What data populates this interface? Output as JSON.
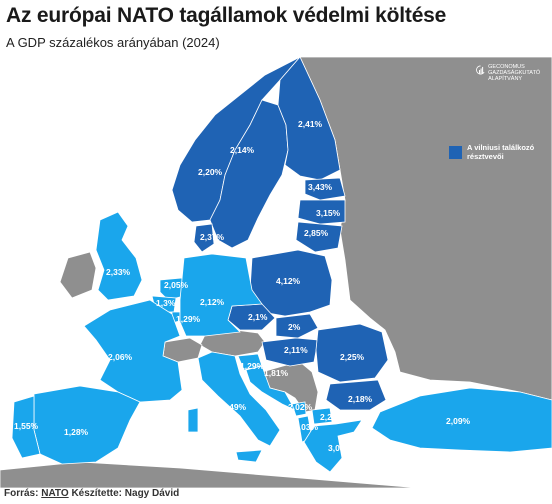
{
  "title": "Az európai NATO tagállamok védelmi költése",
  "subtitle": "A GDP százalékos arányában (2024)",
  "footer": {
    "source_prefix": "Forrás:",
    "source": "NATO",
    "author": "Készítette: Nagy Dávid"
  },
  "legend": {
    "label": "A vilniusi találkozó résztvevői"
  },
  "logo": {
    "text": "GECONOMUS GAZDASÁGKUTATÓ ALAPÍTVÁNY"
  },
  "colors": {
    "vilnius": "#1f63b4",
    "nato": "#1aa6ec",
    "non_nato": "#8f8f8f",
    "sea": "#ffffff",
    "border": "#ffffff",
    "label": "#ffffff"
  },
  "countries": [
    {
      "name": "Finland",
      "value": "2,41%",
      "group": "vilnius"
    },
    {
      "name": "Sweden",
      "value": "2,14%",
      "group": "vilnius"
    },
    {
      "name": "Norway",
      "value": "2,20%",
      "group": "vilnius"
    },
    {
      "name": "Estonia",
      "value": "3,43%",
      "group": "vilnius"
    },
    {
      "name": "Latvia",
      "value": "3,15%",
      "group": "vilnius"
    },
    {
      "name": "Lithuania",
      "value": "2,85%",
      "group": "vilnius"
    },
    {
      "name": "Denmark",
      "value": "2,37%",
      "group": "vilnius"
    },
    {
      "name": "Poland",
      "value": "4,12%",
      "group": "vilnius"
    },
    {
      "name": "Czechia",
      "value": "2,1%",
      "group": "vilnius"
    },
    {
      "name": "Slovakia",
      "value": "2%",
      "group": "vilnius"
    },
    {
      "name": "Hungary",
      "value": "2,11%",
      "group": "vilnius"
    },
    {
      "name": "Romania",
      "value": "2,25%",
      "group": "vilnius"
    },
    {
      "name": "Bulgaria",
      "value": "2,18%",
      "group": "vilnius"
    },
    {
      "name": "United Kingdom",
      "value": "2,33%",
      "group": "nato"
    },
    {
      "name": "Netherlands",
      "value": "2,05%",
      "group": "nato"
    },
    {
      "name": "Belgium",
      "value": "1,3%",
      "group": "nato"
    },
    {
      "name": "Luxembourg",
      "value": "1,29%",
      "group": "nato"
    },
    {
      "name": "Germany",
      "value": "2,12%",
      "group": "nato"
    },
    {
      "name": "France",
      "value": "2,06%",
      "group": "nato"
    },
    {
      "name": "Slovenia",
      "value": "1,29%",
      "group": "nato"
    },
    {
      "name": "Croatia",
      "value": "1,81%",
      "group": "nato"
    },
    {
      "name": "Italy",
      "value": "1,49%",
      "group": "nato"
    },
    {
      "name": "Montenegro",
      "value": "2,02%",
      "group": "nato"
    },
    {
      "name": "Albania",
      "value": "2,03%",
      "group": "nato"
    },
    {
      "name": "North Macedonia",
      "value": "2,22%",
      "group": "nato"
    },
    {
      "name": "Greece",
      "value": "3,08%",
      "group": "nato"
    },
    {
      "name": "Turkey",
      "value": "2,09%",
      "group": "nato"
    },
    {
      "name": "Portugal",
      "value": "1,55%",
      "group": "nato"
    },
    {
      "name": "Spain",
      "value": "1,28%",
      "group": "nato"
    }
  ]
}
